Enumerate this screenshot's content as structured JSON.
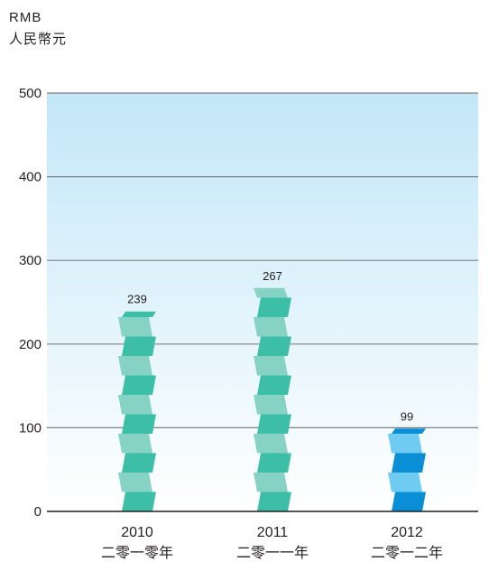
{
  "chart_data": {
    "type": "bar",
    "unit_label_en": "RMB",
    "unit_label_zh": "人民幣元",
    "categories": [
      "2010",
      "2011",
      "2012"
    ],
    "categories_zh": [
      "二零一零年",
      "二零一一年",
      "二零一二年"
    ],
    "values": [
      239,
      267,
      99
    ],
    "data_labels": [
      "239",
      "267",
      "99"
    ],
    "yticks": [
      0,
      100,
      200,
      300,
      400,
      500
    ],
    "ytick_labels": [
      "0",
      "100",
      "200",
      "300",
      "400",
      "500"
    ],
    "ylim": [
      0,
      500
    ],
    "grid": true,
    "colors": {
      "bar_2010_dark": "#3cbfa6",
      "bar_2010_light": "#86d3c5",
      "bar_2011_dark": "#3cbfa6",
      "bar_2011_light": "#86d3c5",
      "bar_2012_dark": "#0a8fd6",
      "bar_2012_light": "#6fcbf1",
      "background_top": "#c3e7f8",
      "background_bottom": "#ffffff",
      "gridline": "#808080",
      "axis": "#231f20"
    }
  }
}
